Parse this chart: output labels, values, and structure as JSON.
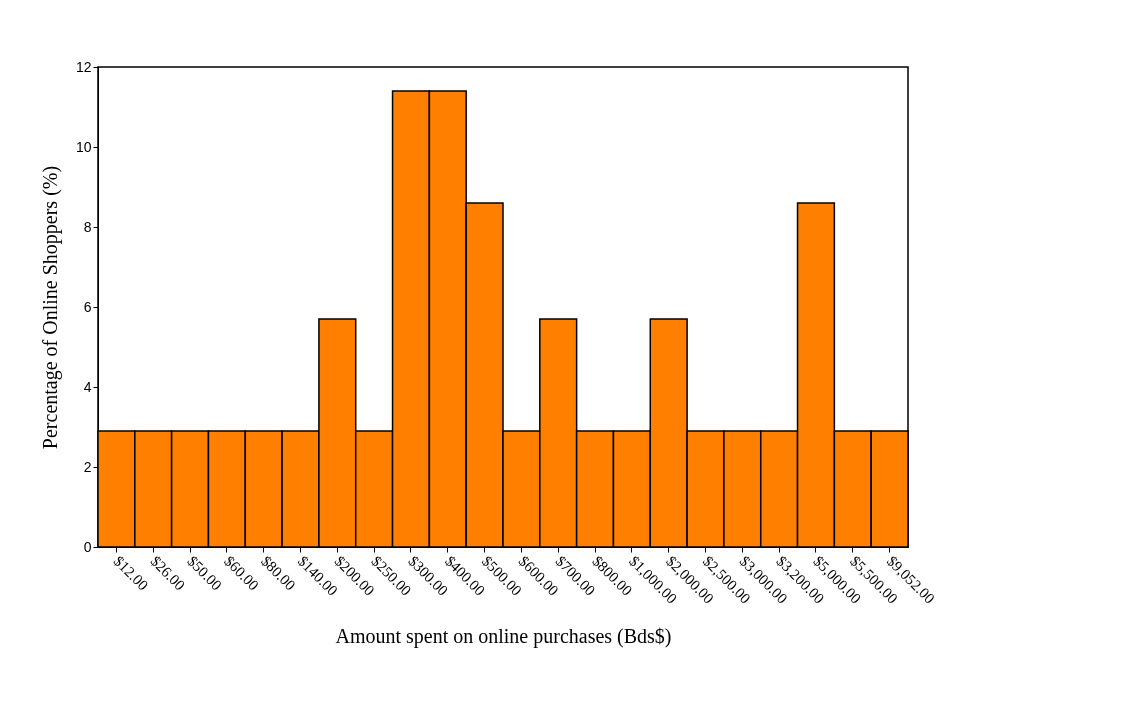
{
  "chart_data": {
    "type": "bar",
    "xlabel": "Amount spent on online purchases (Bds$)",
    "ylabel": "Percentage of Online Shoppers (%)",
    "categories": [
      "$12.00",
      "$26.00",
      "$50.00",
      "$60.00",
      "$80.00",
      "$140.00",
      "$200.00",
      "$250.00",
      "$300.00",
      "$400.00",
      "$500.00",
      "$600.00",
      "$700.00",
      "$800.00",
      "$1,000.00",
      "$2,000.00",
      "$2,500.00",
      "$3,000.00",
      "$3,200.00",
      "$5,000.00",
      "$5,500.00",
      "$9,052.00"
    ],
    "values": [
      2.9,
      2.9,
      2.9,
      2.9,
      2.9,
      2.9,
      5.7,
      2.9,
      11.4,
      11.4,
      8.6,
      2.9,
      5.7,
      2.9,
      2.9,
      5.7,
      2.9,
      2.9,
      2.9,
      8.6,
      2.9,
      2.9
    ],
    "color": "#ff8000",
    "ylim": [
      0,
      12
    ],
    "yticks": [
      0,
      2,
      4,
      6,
      8,
      10,
      12
    ],
    "grid": false
  }
}
